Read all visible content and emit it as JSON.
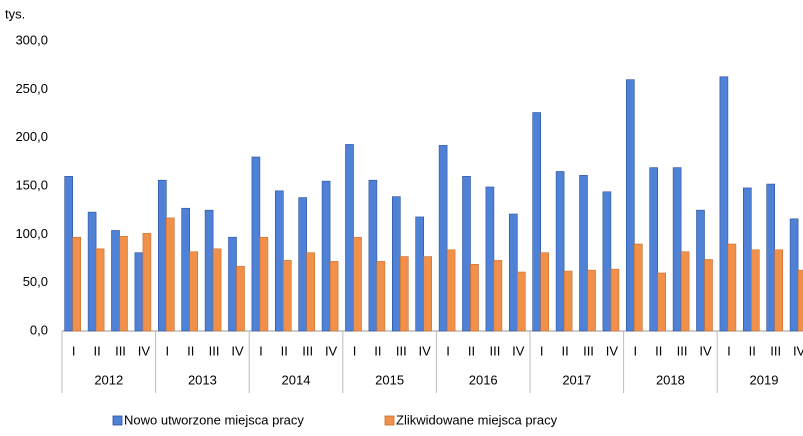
{
  "chart_data": {
    "type": "bar",
    "y_label": "tys.",
    "categories": [
      "I",
      "II",
      "III",
      "IV",
      "I",
      "II",
      "III",
      "IV",
      "I",
      "II",
      "III",
      "IV",
      "I",
      "II",
      "III",
      "IV",
      "I",
      "II",
      "III",
      "IV",
      "I",
      "II",
      "III",
      "IV",
      "I",
      "II",
      "III",
      "IV",
      "I",
      "II",
      "III",
      "IV"
    ],
    "groups": [
      "2012",
      "2013",
      "2014",
      "2015",
      "2016",
      "2017",
      "2018",
      "2019"
    ],
    "series": [
      {
        "name": "Nowo utworzone miejsca pracy",
        "color": "#4f81d6",
        "values": [
          160,
          123,
          104,
          81,
          156,
          127,
          125,
          97,
          180,
          145,
          138,
          155,
          193,
          156,
          139,
          118,
          192,
          160,
          149,
          121,
          226,
          165,
          161,
          144,
          260,
          169,
          169,
          125,
          263,
          148,
          152,
          116
        ]
      },
      {
        "name": "Zlikwidowane miejsca pracy",
        "color": "#f0904a",
        "values": [
          97,
          85,
          98,
          101,
          117,
          82,
          85,
          67,
          97,
          73,
          81,
          72,
          97,
          72,
          77,
          77,
          84,
          69,
          73,
          61,
          81,
          62,
          63,
          64,
          90,
          60,
          82,
          74,
          90,
          84,
          84,
          63
        ]
      }
    ],
    "ylim": [
      0,
      300
    ],
    "yticks": [
      {
        "value": 0,
        "label": "0,0"
      },
      {
        "value": 50,
        "label": "50,0"
      },
      {
        "value": 100,
        "label": "100,0"
      },
      {
        "value": 150,
        "label": "150,0"
      },
      {
        "value": 200,
        "label": "200,0"
      },
      {
        "value": 250,
        "label": "250,0"
      },
      {
        "value": 300,
        "label": "300,0"
      }
    ]
  }
}
